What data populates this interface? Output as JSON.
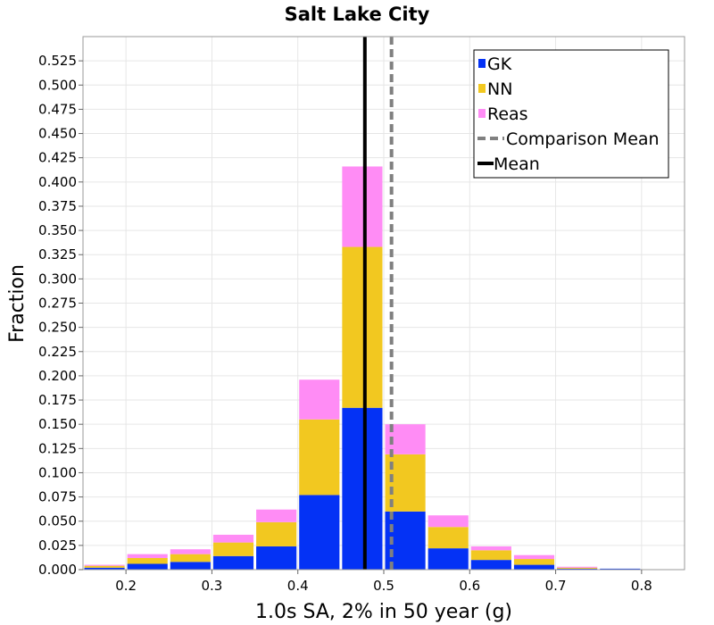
{
  "chart_data": {
    "type": "bar",
    "stacked": true,
    "title": "Salt Lake City",
    "xlabel": "1.0s SA, 2% in 50 year (g)",
    "ylabel": "Fraction",
    "xlim": [
      0.15,
      0.85
    ],
    "ylim": [
      0.0,
      0.55
    ],
    "x_ticks": [
      "0.2",
      "0.3",
      "0.4",
      "0.5",
      "0.6",
      "0.7",
      "0.8"
    ],
    "y_ticks": [
      "0.000",
      "0.025",
      "0.050",
      "0.075",
      "0.100",
      "0.125",
      "0.150",
      "0.175",
      "0.200",
      "0.225",
      "0.250",
      "0.275",
      "0.300",
      "0.325",
      "0.350",
      "0.375",
      "0.400",
      "0.425",
      "0.450",
      "0.475",
      "0.500",
      "0.525"
    ],
    "bin_width": 0.05,
    "bin_centers": [
      0.175,
      0.225,
      0.275,
      0.325,
      0.375,
      0.425,
      0.475,
      0.525,
      0.575,
      0.625,
      0.675,
      0.725,
      0.775,
      0.825
    ],
    "series": [
      {
        "name": "GK",
        "color": "#0432f5",
        "values": [
          0.002,
          0.006,
          0.008,
          0.014,
          0.024,
          0.077,
          0.167,
          0.06,
          0.022,
          0.01,
          0.005,
          0.001,
          0.001,
          0.0
        ]
      },
      {
        "name": "NN",
        "color": "#f2c820",
        "values": [
          0.002,
          0.006,
          0.008,
          0.014,
          0.025,
          0.078,
          0.166,
          0.059,
          0.022,
          0.01,
          0.006,
          0.001,
          0.0,
          0.0
        ]
      },
      {
        "name": "Reas",
        "color": "#ff8cf5",
        "values": [
          0.001,
          0.004,
          0.005,
          0.008,
          0.013,
          0.041,
          0.083,
          0.031,
          0.012,
          0.004,
          0.004,
          0.001,
          0.0,
          0.0
        ]
      }
    ],
    "lines": [
      {
        "name": "Comparison Mean",
        "x": 0.509,
        "color": "#808080",
        "style": "dashed"
      },
      {
        "name": "Mean",
        "x": 0.478,
        "color": "#000000",
        "style": "solid"
      }
    ],
    "legend": {
      "position": "top-right",
      "entries": [
        "GK",
        "NN",
        "Reas",
        "Comparison Mean",
        "Mean"
      ]
    },
    "grid": true
  }
}
